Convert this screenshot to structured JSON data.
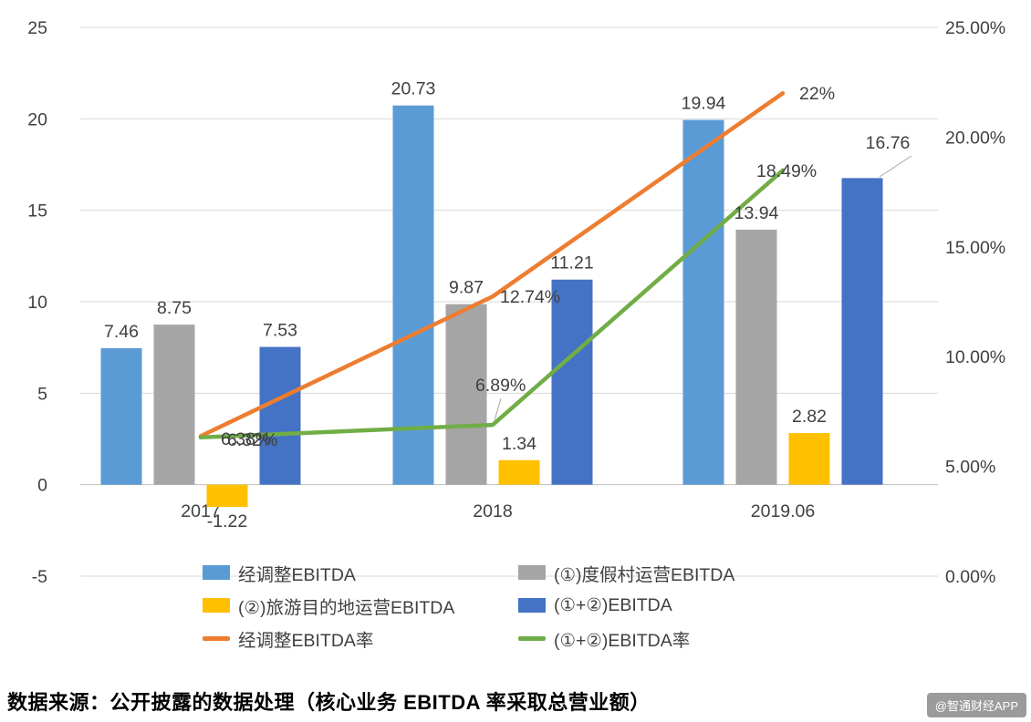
{
  "page": {
    "source_note": "数据来源：公开披露的数据处理（核心业务 EBITDA 率采取总营业额）",
    "watermark": "@智通财经APP"
  },
  "chart_data": {
    "type": "combo-bar-line",
    "categories": [
      "2017",
      "2018",
      "2019.06"
    ],
    "bar_series": [
      {
        "name": "经调整EBITDA",
        "color": "#5B9BD5",
        "values": [
          7.46,
          20.73,
          19.94
        ],
        "labels": [
          "7.46",
          "20.73",
          "19.94"
        ]
      },
      {
        "name": "(①)度假村运营EBITDA",
        "color": "#A5A5A5",
        "values": [
          8.75,
          9.87,
          13.94
        ],
        "labels": [
          "8.75",
          "9.87",
          "13.94"
        ]
      },
      {
        "name": "(②)旅游目的地运营EBITDA",
        "color": "#FFC000",
        "values": [
          -1.22,
          1.34,
          2.82
        ],
        "labels": [
          "-1.22",
          "1.34",
          "2.82"
        ]
      },
      {
        "name": "(①+②)EBITDA",
        "color": "#4472C4",
        "values": [
          7.53,
          11.21,
          16.76
        ],
        "labels": [
          "7.53",
          "11.21",
          "16.76"
        ]
      }
    ],
    "line_series": [
      {
        "name": "经调整EBITDA率",
        "color": "#ED7D31",
        "values": [
          6.38,
          12.74,
          22
        ],
        "labels": [
          "6.38%",
          "12.74%",
          "22%"
        ]
      },
      {
        "name": "(①+②)EBITDA率",
        "color": "#70AD47",
        "values": [
          6.32,
          6.89,
          18.49
        ],
        "labels": [
          "6.32%",
          "6.89%",
          "18.49%"
        ]
      }
    ],
    "left_axis": {
      "min": -5,
      "max": 25,
      "ticks": [
        25,
        20,
        15,
        10,
        5,
        0,
        -5
      ]
    },
    "right_axis": {
      "min": 0,
      "max": 25,
      "ticks": [
        "25.00%",
        "20.00%",
        "15.00%",
        "10.00%",
        "5.00%",
        "0.00%"
      ]
    },
    "grid": true,
    "legend_position": "bottom"
  }
}
